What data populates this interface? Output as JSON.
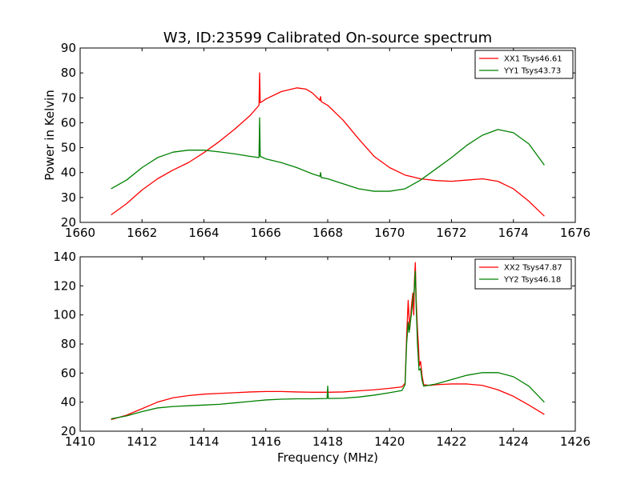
{
  "chart_data": [
    {
      "type": "line",
      "title": "W3, ID:23599 Calibrated On-source spectrum",
      "xlabel": "",
      "ylabel": "Power in Kelvin",
      "xlim": [
        1660,
        1676
      ],
      "ylim": [
        20,
        90
      ],
      "xticks": [
        "1660",
        "1662",
        "1664",
        "1666",
        "1668",
        "1670",
        "1672",
        "1674",
        "1676"
      ],
      "yticks": [
        "20",
        "30",
        "40",
        "50",
        "60",
        "70",
        "80",
        "90"
      ],
      "grid": false,
      "legend_position": "upper-right",
      "series": [
        {
          "name": "XX1 Tsys46.61",
          "color": "#ff0000",
          "points": [
            [
              1661.0,
              23.0
            ],
            [
              1661.5,
              27.5
            ],
            [
              1662.0,
              33.0
            ],
            [
              1662.5,
              37.5
            ],
            [
              1663.0,
              41.0
            ],
            [
              1663.5,
              44.0
            ],
            [
              1664.0,
              48.0
            ],
            [
              1664.5,
              52.5
            ],
            [
              1665.0,
              57.5
            ],
            [
              1665.5,
              63.0
            ],
            [
              1665.78,
              67.0
            ],
            [
              1665.8,
              80.0
            ],
            [
              1665.82,
              68.0
            ],
            [
              1666.0,
              69.5
            ],
            [
              1666.5,
              72.5
            ],
            [
              1667.0,
              74.0
            ],
            [
              1667.3,
              73.5
            ],
            [
              1667.5,
              72.0
            ],
            [
              1667.75,
              69.0
            ],
            [
              1667.77,
              70.5
            ],
            [
              1667.79,
              68.5
            ],
            [
              1668.0,
              67.0
            ],
            [
              1668.5,
              61.0
            ],
            [
              1669.0,
              53.5
            ],
            [
              1669.5,
              46.5
            ],
            [
              1670.0,
              42.0
            ],
            [
              1670.5,
              39.0
            ],
            [
              1671.0,
              37.5
            ],
            [
              1671.5,
              36.8
            ],
            [
              1672.0,
              36.5
            ],
            [
              1672.5,
              37.0
            ],
            [
              1673.0,
              37.5
            ],
            [
              1673.5,
              36.5
            ],
            [
              1674.0,
              33.5
            ],
            [
              1674.5,
              28.5
            ],
            [
              1675.0,
              22.5
            ]
          ]
        },
        {
          "name": "YY1 Tsys43.73",
          "color": "#008000",
          "points": [
            [
              1661.0,
              33.5
            ],
            [
              1661.5,
              37.0
            ],
            [
              1662.0,
              42.0
            ],
            [
              1662.5,
              46.0
            ],
            [
              1663.0,
              48.2
            ],
            [
              1663.5,
              49.0
            ],
            [
              1664.0,
              49.0
            ],
            [
              1664.5,
              48.3
            ],
            [
              1665.0,
              47.5
            ],
            [
              1665.5,
              46.5
            ],
            [
              1665.78,
              46.0
            ],
            [
              1665.8,
              62.0
            ],
            [
              1665.82,
              46.5
            ],
            [
              1666.0,
              45.5
            ],
            [
              1666.5,
              44.0
            ],
            [
              1667.0,
              42.0
            ],
            [
              1667.5,
              39.5
            ],
            [
              1667.75,
              38.5
            ],
            [
              1667.77,
              40.0
            ],
            [
              1667.79,
              38.0
            ],
            [
              1668.0,
              37.5
            ],
            [
              1668.5,
              35.5
            ],
            [
              1669.0,
              33.5
            ],
            [
              1669.5,
              32.5
            ],
            [
              1670.0,
              32.5
            ],
            [
              1670.5,
              33.5
            ],
            [
              1671.0,
              37.0
            ],
            [
              1671.5,
              41.5
            ],
            [
              1672.0,
              46.0
            ],
            [
              1672.5,
              51.0
            ],
            [
              1673.0,
              55.0
            ],
            [
              1673.5,
              57.3
            ],
            [
              1674.0,
              56.0
            ],
            [
              1674.5,
              51.5
            ],
            [
              1675.0,
              43.0
            ]
          ]
        }
      ]
    },
    {
      "type": "line",
      "title": "",
      "xlabel": "Frequency (MHz)",
      "ylabel": "",
      "xlim": [
        1410,
        1426
      ],
      "ylim": [
        20,
        140
      ],
      "xticks": [
        "1410",
        "1412",
        "1414",
        "1416",
        "1418",
        "1420",
        "1422",
        "1424",
        "1426"
      ],
      "yticks": [
        "20",
        "40",
        "60",
        "80",
        "100",
        "120",
        "140"
      ],
      "grid": false,
      "legend_position": "upper-right",
      "series": [
        {
          "name": "XX2 Tsys47.87",
          "color": "#ff0000",
          "points": [
            [
              1411.0,
              28.0
            ],
            [
              1411.5,
              31.0
            ],
            [
              1412.0,
              35.5
            ],
            [
              1412.5,
              40.0
            ],
            [
              1413.0,
              43.0
            ],
            [
              1413.5,
              44.5
            ],
            [
              1414.0,
              45.5
            ],
            [
              1414.5,
              46.0
            ],
            [
              1415.0,
              46.5
            ],
            [
              1415.5,
              47.0
            ],
            [
              1416.0,
              47.3
            ],
            [
              1416.5,
              47.3
            ],
            [
              1417.0,
              47.0
            ],
            [
              1417.5,
              46.8
            ],
            [
              1418.0,
              46.8
            ],
            [
              1418.5,
              47.0
            ],
            [
              1419.0,
              47.8
            ],
            [
              1419.5,
              48.5
            ],
            [
              1420.0,
              49.5
            ],
            [
              1420.4,
              50.5
            ],
            [
              1420.5,
              53.0
            ],
            [
              1420.55,
              85.0
            ],
            [
              1420.6,
              110.0
            ],
            [
              1420.65,
              90.0
            ],
            [
              1420.7,
              105.0
            ],
            [
              1420.75,
              115.0
            ],
            [
              1420.78,
              100.0
            ],
            [
              1420.8,
              122.0
            ],
            [
              1420.83,
              136.0
            ],
            [
              1420.86,
              110.0
            ],
            [
              1420.9,
              90.0
            ],
            [
              1420.93,
              80.0
            ],
            [
              1420.96,
              65.0
            ],
            [
              1421.0,
              68.0
            ],
            [
              1421.05,
              58.0
            ],
            [
              1421.1,
              52.0
            ],
            [
              1421.3,
              51.5
            ],
            [
              1421.5,
              52.0
            ],
            [
              1422.0,
              52.5
            ],
            [
              1422.5,
              52.5
            ],
            [
              1423.0,
              51.5
            ],
            [
              1423.5,
              48.5
            ],
            [
              1424.0,
              44.0
            ],
            [
              1424.5,
              38.0
            ],
            [
              1425.0,
              31.5
            ]
          ]
        },
        {
          "name": "YY2 Tsys46.18",
          "color": "#008000",
          "points": [
            [
              1411.0,
              28.5
            ],
            [
              1411.5,
              30.5
            ],
            [
              1412.0,
              33.5
            ],
            [
              1412.5,
              36.0
            ],
            [
              1413.0,
              37.0
            ],
            [
              1413.5,
              37.5
            ],
            [
              1414.0,
              38.0
            ],
            [
              1414.5,
              38.5
            ],
            [
              1415.0,
              39.5
            ],
            [
              1415.5,
              40.5
            ],
            [
              1416.0,
              41.5
            ],
            [
              1416.5,
              42.0
            ],
            [
              1417.0,
              42.3
            ],
            [
              1417.5,
              42.3
            ],
            [
              1417.98,
              42.5
            ],
            [
              1418.0,
              51.0
            ],
            [
              1418.02,
              42.5
            ],
            [
              1418.5,
              42.7
            ],
            [
              1419.0,
              43.5
            ],
            [
              1419.5,
              44.8
            ],
            [
              1420.0,
              46.5
            ],
            [
              1420.4,
              48.0
            ],
            [
              1420.5,
              52.0
            ],
            [
              1420.55,
              80.0
            ],
            [
              1420.6,
              95.0
            ],
            [
              1420.63,
              88.0
            ],
            [
              1420.7,
              100.0
            ],
            [
              1420.75,
              110.0
            ],
            [
              1420.8,
              118.0
            ],
            [
              1420.83,
              130.0
            ],
            [
              1420.86,
              105.0
            ],
            [
              1420.9,
              80.0
            ],
            [
              1420.95,
              62.0
            ],
            [
              1421.0,
              63.0
            ],
            [
              1421.05,
              55.0
            ],
            [
              1421.1,
              51.0
            ],
            [
              1421.5,
              52.5
            ],
            [
              1422.0,
              55.5
            ],
            [
              1422.5,
              58.5
            ],
            [
              1423.0,
              60.3
            ],
            [
              1423.5,
              60.3
            ],
            [
              1424.0,
              57.5
            ],
            [
              1424.5,
              51.0
            ],
            [
              1425.0,
              40.0
            ]
          ]
        }
      ]
    }
  ]
}
